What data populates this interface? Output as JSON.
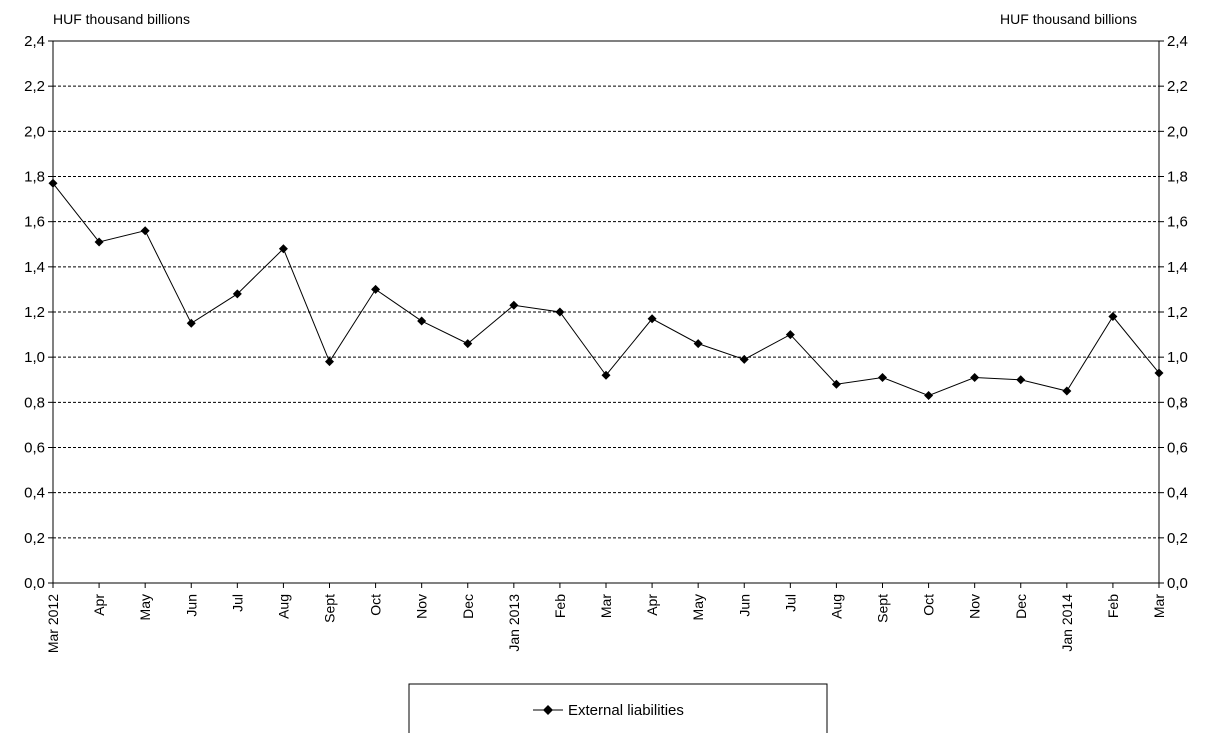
{
  "chart_data": {
    "type": "line",
    "title": "",
    "y_unit_left": "HUF thousand billions",
    "y_unit_right": "HUF thousand billions",
    "xlabel": "",
    "ylabel": "",
    "ylim": [
      0,
      2.4
    ],
    "yticks": [
      "0,0",
      "0,2",
      "0,4",
      "0,6",
      "0,8",
      "1,0",
      "1,2",
      "1,4",
      "1,6",
      "1,8",
      "2,0",
      "2,2",
      "2,4"
    ],
    "ytick_values": [
      0,
      0.2,
      0.4,
      0.6,
      0.8,
      1.0,
      1.2,
      1.4,
      1.6,
      1.8,
      2.0,
      2.2,
      2.4
    ],
    "grid": "horizontal dashed",
    "legend_position": "bottom-center",
    "categories": [
      "Mar 2012",
      "Apr",
      "May",
      "Jun",
      "Jul",
      "Aug",
      "Sept",
      "Oct",
      "Nov",
      "Dec",
      "Jan 2013",
      "Feb",
      "Mar",
      "Apr",
      "May",
      "Jun",
      "Jul",
      "Aug",
      "Sept",
      "Oct",
      "Nov",
      "Dec",
      "Jan 2014",
      "Feb",
      "Mar"
    ],
    "series": [
      {
        "name": "External liabilities",
        "color": "#000000",
        "marker": "diamond",
        "values": [
          1.77,
          1.51,
          1.56,
          1.15,
          1.28,
          1.48,
          0.98,
          1.3,
          1.16,
          1.06,
          1.23,
          1.2,
          0.92,
          1.17,
          1.06,
          0.99,
          1.1,
          0.88,
          0.91,
          0.83,
          0.91,
          0.9,
          0.85,
          1.18,
          0.93
        ]
      }
    ]
  }
}
